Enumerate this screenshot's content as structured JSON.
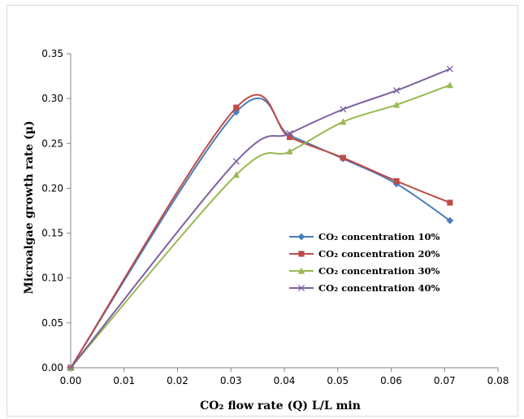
{
  "chart_data": {
    "type": "line",
    "title": "",
    "xlabel": "CO₂ flow rate (Q) L/L min",
    "ylabel": "Microalgae growth rate (µ)",
    "xlim": [
      0,
      0.08
    ],
    "ylim": [
      0,
      0.35
    ],
    "x_ticks": [
      "0.00",
      "0.01",
      "0.02",
      "0.03",
      "0.04",
      "0.05",
      "0.06",
      "0.07",
      "0.08"
    ],
    "y_ticks": [
      "0.00",
      "0.05",
      "0.10",
      "0.15",
      "0.20",
      "0.25",
      "0.30",
      "0.35"
    ],
    "grid": false,
    "legend_position": "center-right",
    "series": [
      {
        "name": "CO₂ concentration 10%",
        "color": "#4a7ebb",
        "marker": "diamond",
        "x": [
          0,
          0.031,
          0.041,
          0.051,
          0.061,
          0.071
        ],
        "y": [
          0,
          0.285,
          0.259,
          0.233,
          0.205,
          0.164
        ]
      },
      {
        "name": "CO₂ concentration 20%",
        "color": "#be4b48",
        "marker": "square",
        "x": [
          0,
          0.031,
          0.041,
          0.051,
          0.061,
          0.071
        ],
        "y": [
          0,
          0.29,
          0.257,
          0.234,
          0.208,
          0.184
        ]
      },
      {
        "name": "CO₂ concentration 30%",
        "color": "#98b954",
        "marker": "triangle",
        "x": [
          0,
          0.031,
          0.041,
          0.051,
          0.061,
          0.071
        ],
        "y": [
          0,
          0.215,
          0.241,
          0.274,
          0.293,
          0.315
        ]
      },
      {
        "name": "CO₂ concentration 40%",
        "color": "#7d60a0",
        "marker": "x",
        "x": [
          0,
          0.031,
          0.041,
          0.051,
          0.061,
          0.071
        ],
        "y": [
          0,
          0.23,
          0.261,
          0.288,
          0.309,
          0.333
        ]
      }
    ]
  }
}
